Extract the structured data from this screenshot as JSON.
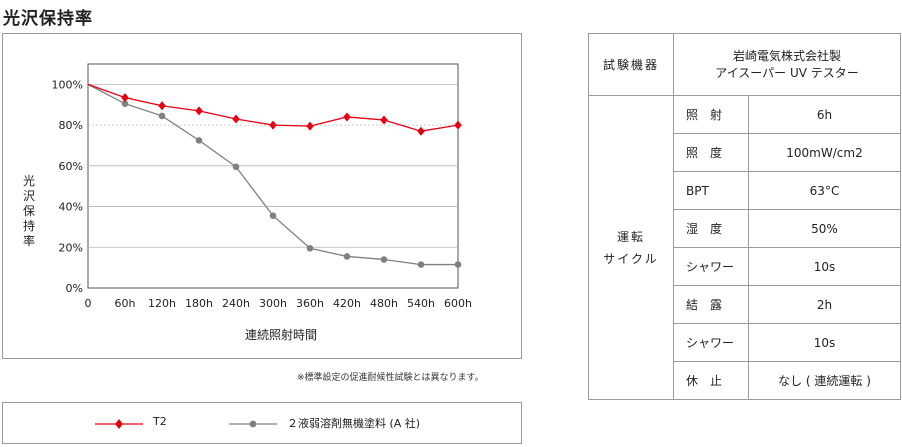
{
  "heading": "光沢保持率",
  "note": "※標準設定の促進耐候性試験とは異なります。",
  "chart_data": {
    "type": "line",
    "title": "",
    "xlabel": "連続照射時間",
    "ylabel": "光沢保持率",
    "categories": [
      "0",
      "60h",
      "120h",
      "180h",
      "240h",
      "300h",
      "360h",
      "420h",
      "480h",
      "540h",
      "600h"
    ],
    "yticks": [
      "0%",
      "20%",
      "40%",
      "60%",
      "80%",
      "100%"
    ],
    "ylim": [
      0,
      100
    ],
    "reference_line": 80,
    "grid": true,
    "series": [
      {
        "name": "T2",
        "color": "#e60012",
        "marker": "diamond",
        "values": [
          100,
          93.5,
          89.5,
          87,
          83,
          80,
          79.5,
          84,
          82.5,
          77,
          80
        ]
      },
      {
        "name": "２液弱溶剤無機塗料 (A 社)",
        "color": "#808080",
        "marker": "circle",
        "values": [
          100,
          90.5,
          84.5,
          72.5,
          59.5,
          35.5,
          19.5,
          15.5,
          14,
          11.5,
          11.5
        ]
      }
    ]
  },
  "table": {
    "tester_label": "試験機器",
    "tester_line1": "岩崎電気株式会社製",
    "tester_line2": "アイスーパー UV テスター",
    "cycle_label_line1": "運転",
    "cycle_label_line2": "サイクル",
    "rows": [
      {
        "item": "照　射",
        "value": "6h"
      },
      {
        "item": "照　度",
        "value": "100mW/cm2"
      },
      {
        "item": "BPT",
        "value": "63°C"
      },
      {
        "item": "湿　度",
        "value": "50%"
      },
      {
        "item": "シャワー",
        "value": "10s"
      },
      {
        "item": "結　露",
        "value": "2h"
      },
      {
        "item": "シャワー",
        "value": "10s"
      },
      {
        "item": "休　止",
        "value": "なし ( 連続運転 )"
      }
    ]
  }
}
